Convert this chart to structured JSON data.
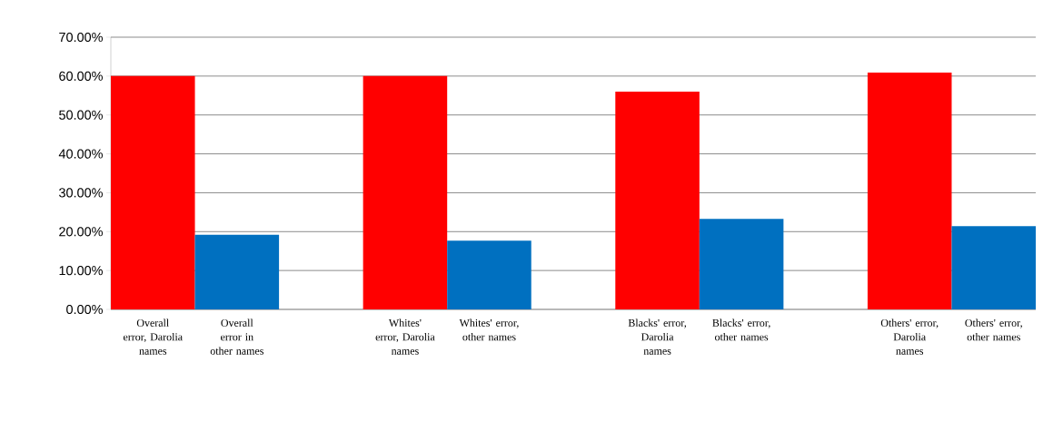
{
  "chart_data": {
    "type": "bar",
    "categories": [
      "Overall error, Darolia names",
      "Overall error in other names",
      null,
      "Whites' error, Darolia names",
      "Whites' error, other names",
      null,
      "Blacks' error, Darolia names",
      "Blacks' error, other names",
      null,
      "Others' error, Darolia names",
      "Others' error, other names"
    ],
    "values": [
      60.0,
      19.2,
      null,
      60.0,
      17.7,
      null,
      56.0,
      23.3,
      null,
      60.9,
      21.4
    ],
    "colors": [
      "#ff0000",
      "#0070c0",
      null,
      "#ff0000",
      "#0070c0",
      null,
      "#ff0000",
      "#0070c0",
      null,
      "#ff0000",
      "#0070c0"
    ],
    "ylim": [
      0,
      70
    ],
    "yticks": [
      {
        "value": 0,
        "label": "0.00%"
      },
      {
        "value": 10,
        "label": "10.00%"
      },
      {
        "value": 20,
        "label": "20.00%"
      },
      {
        "value": 30,
        "label": "30.00%"
      },
      {
        "value": 40,
        "label": "40.00%"
      },
      {
        "value": 50,
        "label": "50.00%"
      },
      {
        "value": 60,
        "label": "60.00%"
      },
      {
        "value": 70,
        "label": "70.00%"
      }
    ],
    "grid": "y"
  }
}
